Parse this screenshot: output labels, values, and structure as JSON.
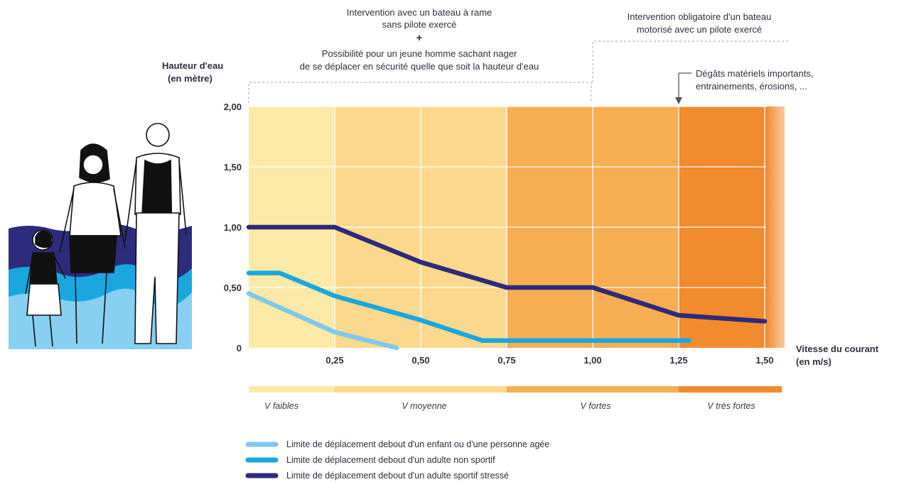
{
  "chart_data": {
    "type": "line",
    "xlabel": [
      "Vitesse du courant",
      "(en m/s)"
    ],
    "ylabel": [
      "Hauteur d'eau",
      "(en mètre)"
    ],
    "xlim": [
      0,
      1.55
    ],
    "ylim": [
      0,
      2.0
    ],
    "x_ticks": [
      0.25,
      0.5,
      0.75,
      1.0,
      1.25,
      1.5
    ],
    "x_tick_labels": [
      "0,25",
      "0,50",
      "0,75",
      "1,00",
      "1,25",
      "1,50"
    ],
    "y_ticks": [
      0,
      0.5,
      1.0,
      1.5,
      2.0
    ],
    "y_tick_labels": [
      "0",
      "0,50",
      "1,00",
      "1,50",
      "2,00"
    ],
    "grid": true,
    "background_zones": [
      {
        "from": 0,
        "to": 0.25,
        "color": "#fce9a6"
      },
      {
        "from": 0.25,
        "to": 0.75,
        "color": "#fbd88c"
      },
      {
        "from": 0.75,
        "to": 1.25,
        "color": "#f7ad52"
      },
      {
        "from": 1.25,
        "to": 1.55,
        "color": "#f28a2e"
      }
    ],
    "speed_bands": [
      {
        "label": "V faibles",
        "from": 0,
        "to": 0.25,
        "color": "#fce9a6"
      },
      {
        "label": "V moyenne",
        "from": 0.25,
        "to": 0.75,
        "color": "#fbd88c"
      },
      {
        "label": "V fortes",
        "from": 0.75,
        "to": 1.25,
        "color": "#f7ad52"
      },
      {
        "label": "V très fortes",
        "from": 1.25,
        "to": 1.55,
        "color": "#f28a2e"
      }
    ],
    "series": [
      {
        "name": "Limite de déplacement debout d'un enfant ou d'une personne agée",
        "color": "#7ec8ee",
        "points": [
          [
            0,
            0.45
          ],
          [
            0.25,
            0.13
          ],
          [
            0.43,
            0.0
          ]
        ]
      },
      {
        "name": "Limite de déplacement debout d'un adulte non sportif",
        "color": "#1aa7e0",
        "points": [
          [
            0,
            0.62
          ],
          [
            0.09,
            0.62
          ],
          [
            0.25,
            0.43
          ],
          [
            0.5,
            0.23
          ],
          [
            0.68,
            0.06
          ],
          [
            1.28,
            0.06
          ]
        ]
      },
      {
        "name": "Limite de déplacement debout d'un adulte sportif stressé",
        "color": "#2e2a7a",
        "points": [
          [
            0,
            1.0
          ],
          [
            0.25,
            1.0
          ],
          [
            0.5,
            0.71
          ],
          [
            0.75,
            0.5
          ],
          [
            1.0,
            0.5
          ],
          [
            1.25,
            0.27
          ],
          [
            1.5,
            0.22
          ]
        ]
      }
    ],
    "annotations": {
      "left_top": [
        "Intervention avec un bateau à rame",
        "sans pilote exercé",
        "+",
        "Possibilité pour un jeune homme sachant nager",
        "de se déplacer en sécurité quelle que soit la hauteur d'eau"
      ],
      "right_top": [
        "Intervention obligatoire d'un bateau",
        "motorisé avec un pilote exercé"
      ],
      "damage": [
        "Dégâts matériels importants,",
        "entrainements, érosions, ..."
      ]
    },
    "legend_placement": "bottom"
  },
  "colors": {
    "text": "#2f2f3f",
    "grid": "#ffffff",
    "bracket": "#b8b8b8",
    "water_dark": "#2d2b7c",
    "water_mid": "#1aa7e0",
    "water_light": "#87d0f2"
  },
  "illustration": {
    "icon": "family-wading-in-water-icon"
  }
}
